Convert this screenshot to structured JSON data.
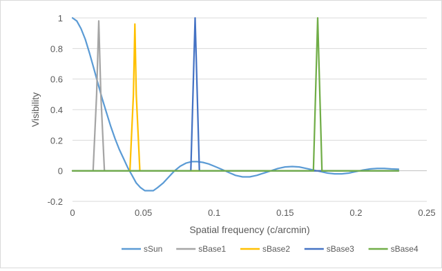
{
  "chart_data": {
    "type": "line",
    "title": "",
    "xlabel": "Spatial frequency (c/arcmin)",
    "ylabel": "Visibility",
    "xlim": [
      0,
      0.25
    ],
    "ylim": [
      -0.2,
      1
    ],
    "x_ticks": [
      "0",
      "0.05",
      "0.1",
      "0.15",
      "0.2",
      "0.25"
    ],
    "y_ticks": [
      "1",
      "0.8",
      "0.6",
      "0.4",
      "0.2",
      "0",
      "-0.2"
    ],
    "grid": "horizontal",
    "legend_position": "bottom",
    "series": [
      {
        "name": "sSun",
        "color": "#5b9bd5",
        "x": [
          0,
          0.003,
          0.006,
          0.009,
          0.012,
          0.015,
          0.018,
          0.021,
          0.024,
          0.027,
          0.03,
          0.033,
          0.036,
          0.039,
          0.042,
          0.045,
          0.048,
          0.051,
          0.054,
          0.057,
          0.06,
          0.064,
          0.068,
          0.072,
          0.076,
          0.08,
          0.084,
          0.088,
          0.092,
          0.096,
          0.1,
          0.105,
          0.11,
          0.115,
          0.12,
          0.125,
          0.13,
          0.135,
          0.14,
          0.145,
          0.15,
          0.155,
          0.16,
          0.165,
          0.17,
          0.175,
          0.18,
          0.185,
          0.19,
          0.195,
          0.2,
          0.205,
          0.21,
          0.215,
          0.22,
          0.225,
          0.23
        ],
        "y": [
          1.0,
          0.98,
          0.93,
          0.86,
          0.77,
          0.67,
          0.57,
          0.47,
          0.38,
          0.29,
          0.21,
          0.14,
          0.08,
          0.02,
          -0.03,
          -0.08,
          -0.11,
          -0.13,
          -0.13,
          -0.13,
          -0.11,
          -0.08,
          -0.04,
          0.0,
          0.03,
          0.05,
          0.06,
          0.06,
          0.055,
          0.045,
          0.03,
          0.01,
          -0.01,
          -0.03,
          -0.04,
          -0.04,
          -0.03,
          -0.015,
          0.0,
          0.015,
          0.025,
          0.028,
          0.025,
          0.015,
          0.005,
          -0.005,
          -0.015,
          -0.02,
          -0.02,
          -0.015,
          -0.005,
          0.005,
          0.012,
          0.015,
          0.015,
          0.012,
          0.01
        ]
      },
      {
        "name": "sBase1",
        "color": "#a5a5a5",
        "x": [
          0,
          0.0145,
          0.017,
          0.0185,
          0.02,
          0.0225,
          0.23
        ],
        "y": [
          0,
          0,
          0.5,
          0.98,
          0.5,
          0,
          0
        ]
      },
      {
        "name": "sBase2",
        "color": "#ffc000",
        "x": [
          0,
          0.0405,
          0.043,
          0.044,
          0.045,
          0.0475,
          0.23
        ],
        "y": [
          0,
          0,
          0.5,
          0.96,
          0.5,
          0,
          0
        ]
      },
      {
        "name": "sBase3",
        "color": "#4472c4",
        "x": [
          0,
          0.0835,
          0.085,
          0.0865,
          0.088,
          0.0895,
          0.23
        ],
        "y": [
          0,
          0,
          0.5,
          1.0,
          0.5,
          0,
          0
        ]
      },
      {
        "name": "sBase4",
        "color": "#70ad47",
        "x": [
          0,
          0.17,
          0.1715,
          0.173,
          0.1745,
          0.176,
          0.23
        ],
        "y": [
          0,
          0,
          0.5,
          1.0,
          0.5,
          0,
          0
        ]
      }
    ]
  }
}
